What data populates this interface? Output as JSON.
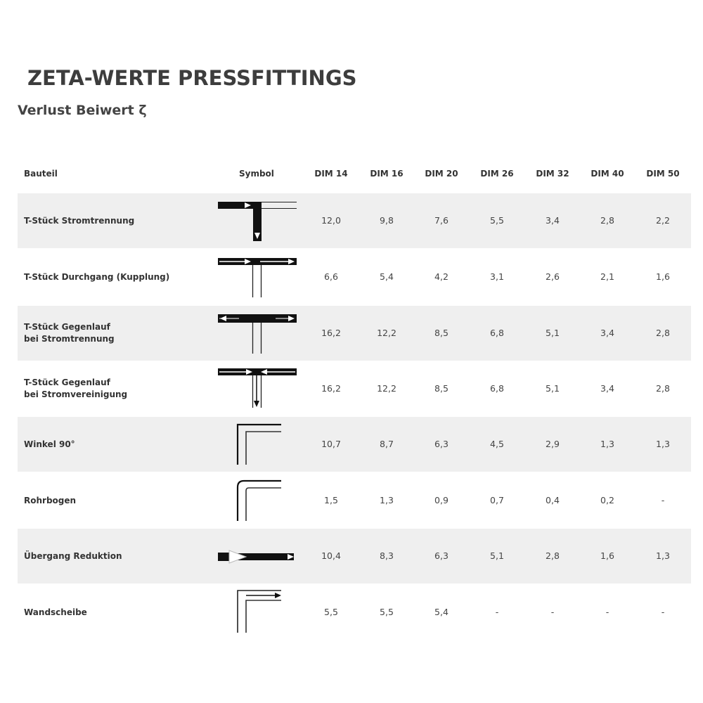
{
  "title": "ZETA-WERTE PRESSFITTINGS",
  "subtitle": "Verlust Beiwert ζ",
  "headers": {
    "bauteil": "Bauteil",
    "symbol": "Symbol",
    "dims": [
      "DIM 14",
      "DIM 16",
      "DIM 20",
      "DIM 26",
      "DIM 32",
      "DIM 40",
      "DIM 50"
    ]
  },
  "rows": [
    {
      "name": [
        "T-Stück Stromtrennung"
      ],
      "icon": "tee-flow-split-icon",
      "values": [
        "12,0",
        "9,8",
        "7,6",
        "5,5",
        "3,4",
        "2,8",
        "2,2"
      ]
    },
    {
      "name": [
        "T-Stück Durchgang (Kupplung)"
      ],
      "icon": "tee-passage-icon",
      "values": [
        "6,6",
        "5,4",
        "4,2",
        "3,1",
        "2,6",
        "2,1",
        "1,6"
      ]
    },
    {
      "name": [
        "T-Stück Gegenlauf",
        "bei Stromtrennung"
      ],
      "icon": "tee-counterflow-split-icon",
      "values": [
        "16,2",
        "12,2",
        "8,5",
        "6,8",
        "5,1",
        "3,4",
        "2,8"
      ]
    },
    {
      "name": [
        "T-Stück Gegenlauf",
        "bei Stromvereinigung"
      ],
      "icon": "tee-counterflow-merge-icon",
      "values": [
        "16,2",
        "12,2",
        "8,5",
        "6,8",
        "5,1",
        "3,4",
        "2,8"
      ]
    },
    {
      "name": [
        "Winkel 90°"
      ],
      "icon": "elbow-90-icon",
      "values": [
        "10,7",
        "8,7",
        "6,3",
        "4,5",
        "2,9",
        "1,3",
        "1,3"
      ]
    },
    {
      "name": [
        "Rohrbogen"
      ],
      "icon": "pipe-bend-icon",
      "values": [
        "1,5",
        "1,3",
        "0,9",
        "0,7",
        "0,4",
        "0,2",
        "-"
      ]
    },
    {
      "name": [
        "Übergang Reduktion"
      ],
      "icon": "reducer-icon",
      "values": [
        "10,4",
        "8,3",
        "6,3",
        "5,1",
        "2,8",
        "1,6",
        "1,3"
      ]
    },
    {
      "name": [
        "Wandscheibe"
      ],
      "icon": "wall-plate-icon",
      "values": [
        "5,5",
        "5,5",
        "5,4",
        "-",
        "-",
        "-",
        "-"
      ]
    }
  ],
  "colors": {
    "stripe": "#efefef",
    "text": "#333333"
  }
}
